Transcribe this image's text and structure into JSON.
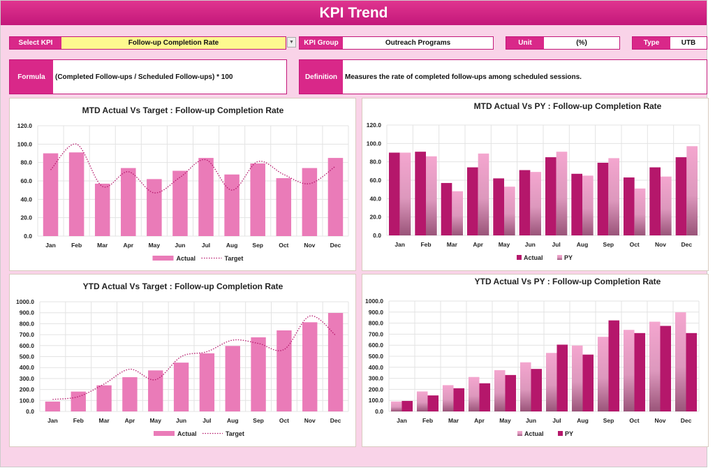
{
  "header": {
    "title": "KPI Trend"
  },
  "controls": {
    "select_kpi_label": "Select KPI",
    "select_kpi_value": "Follow-up Completion Rate",
    "kpi_group_label": "KPI Group",
    "kpi_group_value": "Outreach Programs",
    "unit_label": "Unit",
    "unit_value": "(%)",
    "type_label": "Type",
    "type_value": "UTB",
    "formula_label": "Formula",
    "formula_value": "(Completed Follow-ups / Scheduled Follow-ups) * 100",
    "definition_label": "Definition",
    "definition_value": "Measures the rate of completed follow-ups among scheduled sessions."
  },
  "colors": {
    "accent": "#d92889",
    "actual_bar": "#ea7bb8",
    "actual_dark": "#b5176b",
    "py_light": "#f4a6cf",
    "background": "#f9d3e8"
  },
  "chart_data": [
    {
      "type": "bar",
      "title": "MTD Actual Vs Target : Follow-up Completion Rate",
      "categories": [
        "Jan",
        "Feb",
        "Mar",
        "Apr",
        "May",
        "Jun",
        "Jul",
        "Aug",
        "Sep",
        "Oct",
        "Nov",
        "Dec"
      ],
      "ylim": [
        0,
        120
      ],
      "yticks": [
        "0.0",
        "20.0",
        "40.0",
        "60.0",
        "80.0",
        "100.0",
        "120.0"
      ],
      "grid": true,
      "legend": "bottom",
      "series": [
        {
          "name": "Actual",
          "kind": "bar",
          "values": [
            90,
            91,
            57,
            74,
            62,
            71,
            85,
            67,
            79,
            63,
            74,
            85
          ]
        },
        {
          "name": "Target",
          "kind": "dotted-line",
          "values": [
            72,
            100,
            54,
            70,
            47,
            64,
            83,
            50,
            81,
            67,
            57,
            76
          ]
        }
      ]
    },
    {
      "type": "bar",
      "title": "MTD Actual Vs PY : Follow-up Completion Rate",
      "categories": [
        "Jan",
        "Feb",
        "Mar",
        "Apr",
        "May",
        "Jun",
        "Jul",
        "Aug",
        "Sep",
        "Oct",
        "Nov",
        "Dec"
      ],
      "ylim": [
        0,
        120
      ],
      "yticks": [
        "0.0",
        "20.0",
        "40.0",
        "60.0",
        "80.0",
        "100.0",
        "120.0"
      ],
      "grid": true,
      "legend": "bottom",
      "series": [
        {
          "name": "Actual",
          "kind": "bar",
          "values": [
            90,
            91,
            57,
            74,
            62,
            71,
            85,
            67,
            79,
            63,
            74,
            85
          ]
        },
        {
          "name": "PY",
          "kind": "bar",
          "values": [
            90,
            86,
            48,
            89,
            53,
            69,
            91,
            65,
            84,
            51,
            64,
            97
          ]
        }
      ]
    },
    {
      "type": "bar",
      "title": "YTD Actual Vs Target : Follow-up Completion Rate",
      "categories": [
        "Jan",
        "Feb",
        "Mar",
        "Apr",
        "May",
        "Jun",
        "Jul",
        "Aug",
        "Sep",
        "Oct",
        "Nov",
        "Dec"
      ],
      "ylim": [
        0,
        1000
      ],
      "yticks": [
        "0.0",
        "100.0",
        "200.0",
        "300.0",
        "400.0",
        "500.0",
        "600.0",
        "700.0",
        "800.0",
        "900.0",
        "1000.0"
      ],
      "grid": true,
      "legend": "bottom",
      "series": [
        {
          "name": "Actual",
          "kind": "bar",
          "values": [
            90,
            181,
            238,
            312,
            374,
            445,
            530,
            597,
            676,
            739,
            813,
            898
          ]
        },
        {
          "name": "Target",
          "kind": "dotted-line",
          "values": [
            110,
            135,
            250,
            385,
            290,
            500,
            545,
            650,
            620,
            565,
            870,
            695
          ]
        }
      ]
    },
    {
      "type": "bar",
      "title": "YTD Actual Vs PY : Follow-up Completion Rate",
      "categories": [
        "Jan",
        "Feb",
        "Mar",
        "Apr",
        "May",
        "Jun",
        "Jul",
        "Aug",
        "Sep",
        "Oct",
        "Nov",
        "Dec"
      ],
      "ylim": [
        0,
        1000
      ],
      "yticks": [
        "0.0",
        "100.0",
        "200.0",
        "300.0",
        "400.0",
        "500.0",
        "600.0",
        "700.0",
        "800.0",
        "900.0",
        "1000.0"
      ],
      "grid": true,
      "legend": "bottom",
      "series": [
        {
          "name": "Actual",
          "kind": "bar",
          "values": [
            90,
            181,
            238,
            312,
            374,
            445,
            530,
            597,
            676,
            739,
            813,
            898
          ]
        },
        {
          "name": "PY",
          "kind": "bar",
          "values": [
            95,
            145,
            210,
            255,
            330,
            385,
            605,
            515,
            825,
            710,
            775,
            710
          ]
        }
      ]
    }
  ]
}
